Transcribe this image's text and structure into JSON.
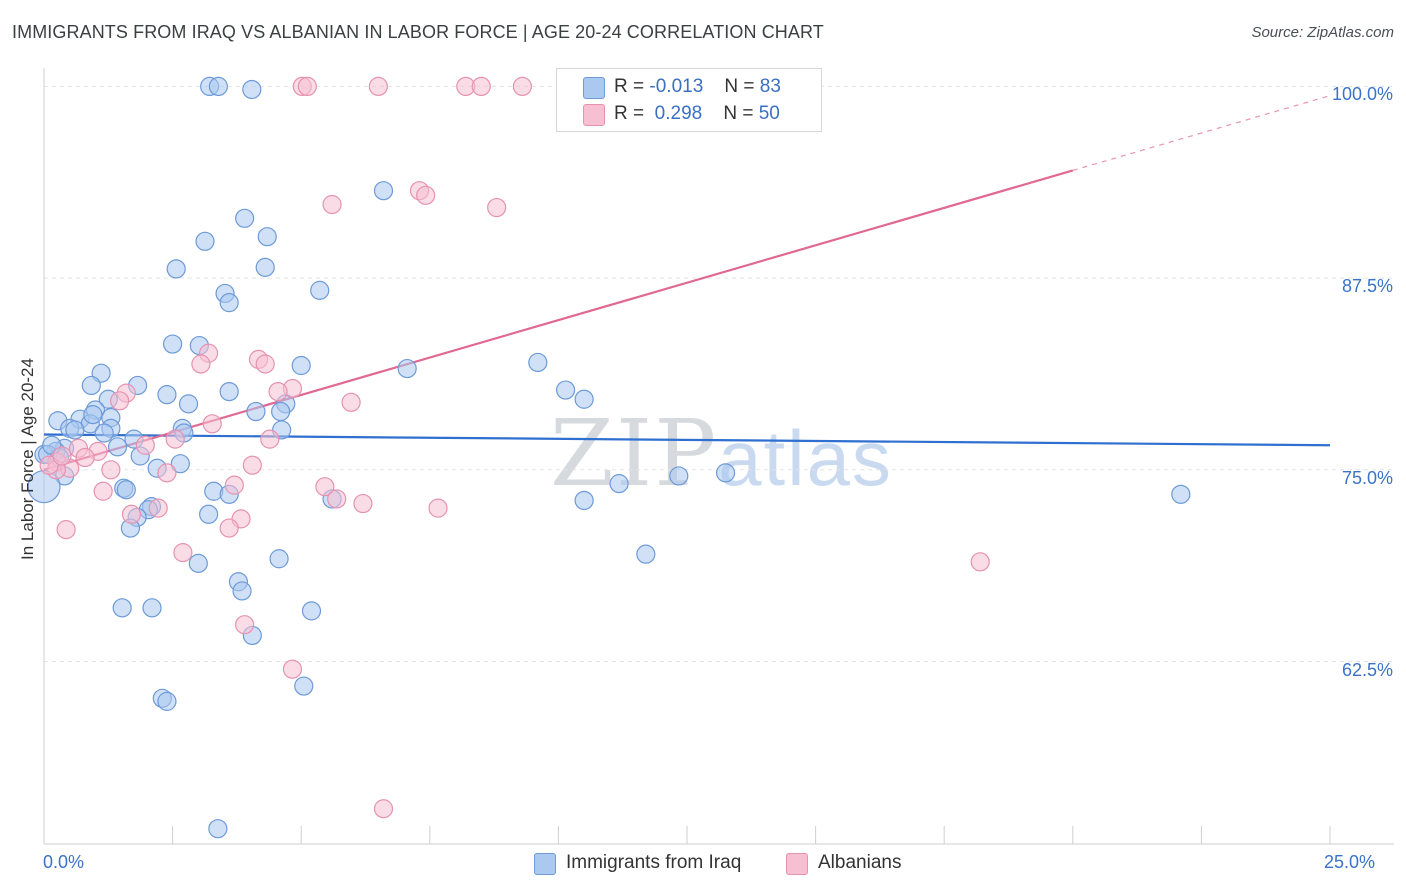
{
  "title": "IMMIGRANTS FROM IRAQ VS ALBANIAN IN LABOR FORCE | AGE 20-24 CORRELATION CHART",
  "source": "Source: ZipAtlas.com",
  "watermark": {
    "zip": "ZIP",
    "atlas": "atlas"
  },
  "colors": {
    "iraq_fill": "#aac8f0",
    "iraq_stroke": "#6d9ad8",
    "iraq_line": "#2f6fd0",
    "albanian_fill": "#f6c0d2",
    "albanian_stroke": "#e692b0",
    "albanian_line": "#e06893",
    "axis_text": "#3b73c8",
    "grid": "#e3e3e3"
  },
  "legend": {
    "iraq": {
      "r_label": "R =",
      "r_value": "-0.013",
      "n_label": "N =",
      "n_value": "83"
    },
    "albanian": {
      "r_label": "R =",
      "r_value": " 0.298",
      "n_label": "N =",
      "n_value": "50"
    }
  },
  "bottom_legend": {
    "iraq": "Immigrants from Iraq",
    "albanian": "Albanians"
  },
  "chart_data": {
    "type": "scatter",
    "title": "IMMIGRANTS FROM IRAQ VS ALBANIAN IN LABOR FORCE | AGE 20-24 CORRELATION CHART",
    "xlabel": "",
    "ylabel": "In Labor Force | Age 20-24",
    "xlim": [
      0,
      25
    ],
    "ylim": [
      50.6,
      101.2
    ],
    "x_tick_labels": [
      "0.0%",
      "25.0%"
    ],
    "y_ticks": [
      62.5,
      75.0,
      87.5,
      100.0
    ],
    "y_tick_labels": [
      "62.5%",
      "75.0%",
      "87.5%",
      "100.0%"
    ],
    "grid": true,
    "legend_position": "top-center",
    "series": [
      {
        "name": "Immigrants from Iraq",
        "R": -0.013,
        "N": 83,
        "trend": {
          "x": [
            0,
            25
          ],
          "y": [
            77.3,
            76.6
          ],
          "dashed_from": null
        },
        "points": [
          [
            3.22,
            100.0
          ],
          [
            3.39,
            100.0
          ],
          [
            4.04,
            99.8
          ],
          [
            6.6,
            93.2
          ],
          [
            3.9,
            91.4
          ],
          [
            3.13,
            89.9
          ],
          [
            4.34,
            90.2
          ],
          [
            2.57,
            88.1
          ],
          [
            4.3,
            88.2
          ],
          [
            5.36,
            86.7
          ],
          [
            3.52,
            86.5
          ],
          [
            3.6,
            85.9
          ],
          [
            2.5,
            83.2
          ],
          [
            3.02,
            83.1
          ],
          [
            5.0,
            81.8
          ],
          [
            7.06,
            81.6
          ],
          [
            9.6,
            82.0
          ],
          [
            1.11,
            81.3
          ],
          [
            0.92,
            80.5
          ],
          [
            1.82,
            80.5
          ],
          [
            3.6,
            80.1
          ],
          [
            2.39,
            79.9
          ],
          [
            10.14,
            80.2
          ],
          [
            10.5,
            79.6
          ],
          [
            1.25,
            79.6
          ],
          [
            2.81,
            79.3
          ],
          [
            4.7,
            79.3
          ],
          [
            4.12,
            78.8
          ],
          [
            4.6,
            78.8
          ],
          [
            1.0,
            78.9
          ],
          [
            1.3,
            78.4
          ],
          [
            0.7,
            78.3
          ],
          [
            0.27,
            78.2
          ],
          [
            0.5,
            77.7
          ],
          [
            0.9,
            78.0
          ],
          [
            0.6,
            77.6
          ],
          [
            1.3,
            77.7
          ],
          [
            2.69,
            77.7
          ],
          [
            2.72,
            77.4
          ],
          [
            4.62,
            77.6
          ],
          [
            1.17,
            77.4
          ],
          [
            0.4,
            76.4
          ],
          [
            0.23,
            76.2
          ],
          [
            0.0,
            76.0
          ],
          [
            1.43,
            76.5
          ],
          [
            1.75,
            77.0
          ],
          [
            1.87,
            75.9
          ],
          [
            2.65,
            75.4
          ],
          [
            2.2,
            75.1
          ],
          [
            0.4,
            74.6
          ],
          [
            11.18,
            74.1
          ],
          [
            12.34,
            74.6
          ],
          [
            13.25,
            74.8
          ],
          [
            22.1,
            73.4
          ],
          [
            1.55,
            73.8
          ],
          [
            1.6,
            73.7
          ],
          [
            3.3,
            73.6
          ],
          [
            3.6,
            73.4
          ],
          [
            5.6,
            73.1
          ],
          [
            10.5,
            73.0
          ],
          [
            0.0,
            73.9
          ],
          [
            2.09,
            72.6
          ],
          [
            2.03,
            72.4
          ],
          [
            3.2,
            72.1
          ],
          [
            1.81,
            71.9
          ],
          [
            1.68,
            71.2
          ],
          [
            3.0,
            68.9
          ],
          [
            4.57,
            69.2
          ],
          [
            11.7,
            69.5
          ],
          [
            3.78,
            67.7
          ],
          [
            3.85,
            67.1
          ],
          [
            1.52,
            66.0
          ],
          [
            2.1,
            66.0
          ],
          [
            5.2,
            65.8
          ],
          [
            4.05,
            64.2
          ],
          [
            5.05,
            60.9
          ],
          [
            2.3,
            60.1
          ],
          [
            2.39,
            59.9
          ],
          [
            3.38,
            51.6
          ],
          [
            0.07,
            76.0
          ],
          [
            0.3,
            75.8
          ],
          [
            0.15,
            76.6
          ],
          [
            0.95,
            78.6
          ]
        ]
      },
      {
        "name": "Albanians",
        "R": 0.298,
        "N": 50,
        "trend": {
          "x": [
            0,
            25
          ],
          "y": [
            75.0,
            99.4
          ],
          "dashed_from": 20.0
        },
        "points": [
          [
            5.02,
            100.0
          ],
          [
            5.12,
            100.0
          ],
          [
            6.5,
            100.0
          ],
          [
            8.2,
            100.0
          ],
          [
            8.5,
            100.0
          ],
          [
            9.3,
            100.0
          ],
          [
            7.3,
            93.2
          ],
          [
            7.42,
            92.9
          ],
          [
            5.6,
            92.3
          ],
          [
            8.8,
            92.1
          ],
          [
            3.2,
            82.6
          ],
          [
            4.17,
            82.2
          ],
          [
            4.3,
            81.9
          ],
          [
            3.05,
            81.9
          ],
          [
            4.83,
            80.3
          ],
          [
            4.55,
            80.1
          ],
          [
            1.6,
            80.0
          ],
          [
            1.47,
            79.5
          ],
          [
            5.97,
            79.4
          ],
          [
            3.27,
            78.0
          ],
          [
            2.55,
            77.0
          ],
          [
            4.39,
            77.0
          ],
          [
            1.97,
            76.6
          ],
          [
            0.67,
            76.4
          ],
          [
            1.05,
            76.2
          ],
          [
            0.8,
            75.8
          ],
          [
            0.25,
            75.5
          ],
          [
            0.5,
            75.1
          ],
          [
            1.3,
            75.0
          ],
          [
            4.05,
            75.3
          ],
          [
            0.24,
            75.0
          ],
          [
            2.39,
            74.8
          ],
          [
            3.7,
            74.0
          ],
          [
            5.46,
            73.9
          ],
          [
            1.15,
            73.6
          ],
          [
            5.69,
            73.1
          ],
          [
            6.2,
            72.8
          ],
          [
            7.66,
            72.5
          ],
          [
            2.22,
            72.5
          ],
          [
            1.7,
            72.1
          ],
          [
            3.83,
            71.8
          ],
          [
            3.6,
            71.2
          ],
          [
            0.43,
            71.1
          ],
          [
            2.7,
            69.6
          ],
          [
            18.2,
            69.0
          ],
          [
            3.9,
            64.9
          ],
          [
            4.83,
            62.0
          ],
          [
            6.6,
            52.9
          ],
          [
            0.1,
            75.3
          ],
          [
            0.35,
            75.9
          ]
        ]
      }
    ]
  }
}
